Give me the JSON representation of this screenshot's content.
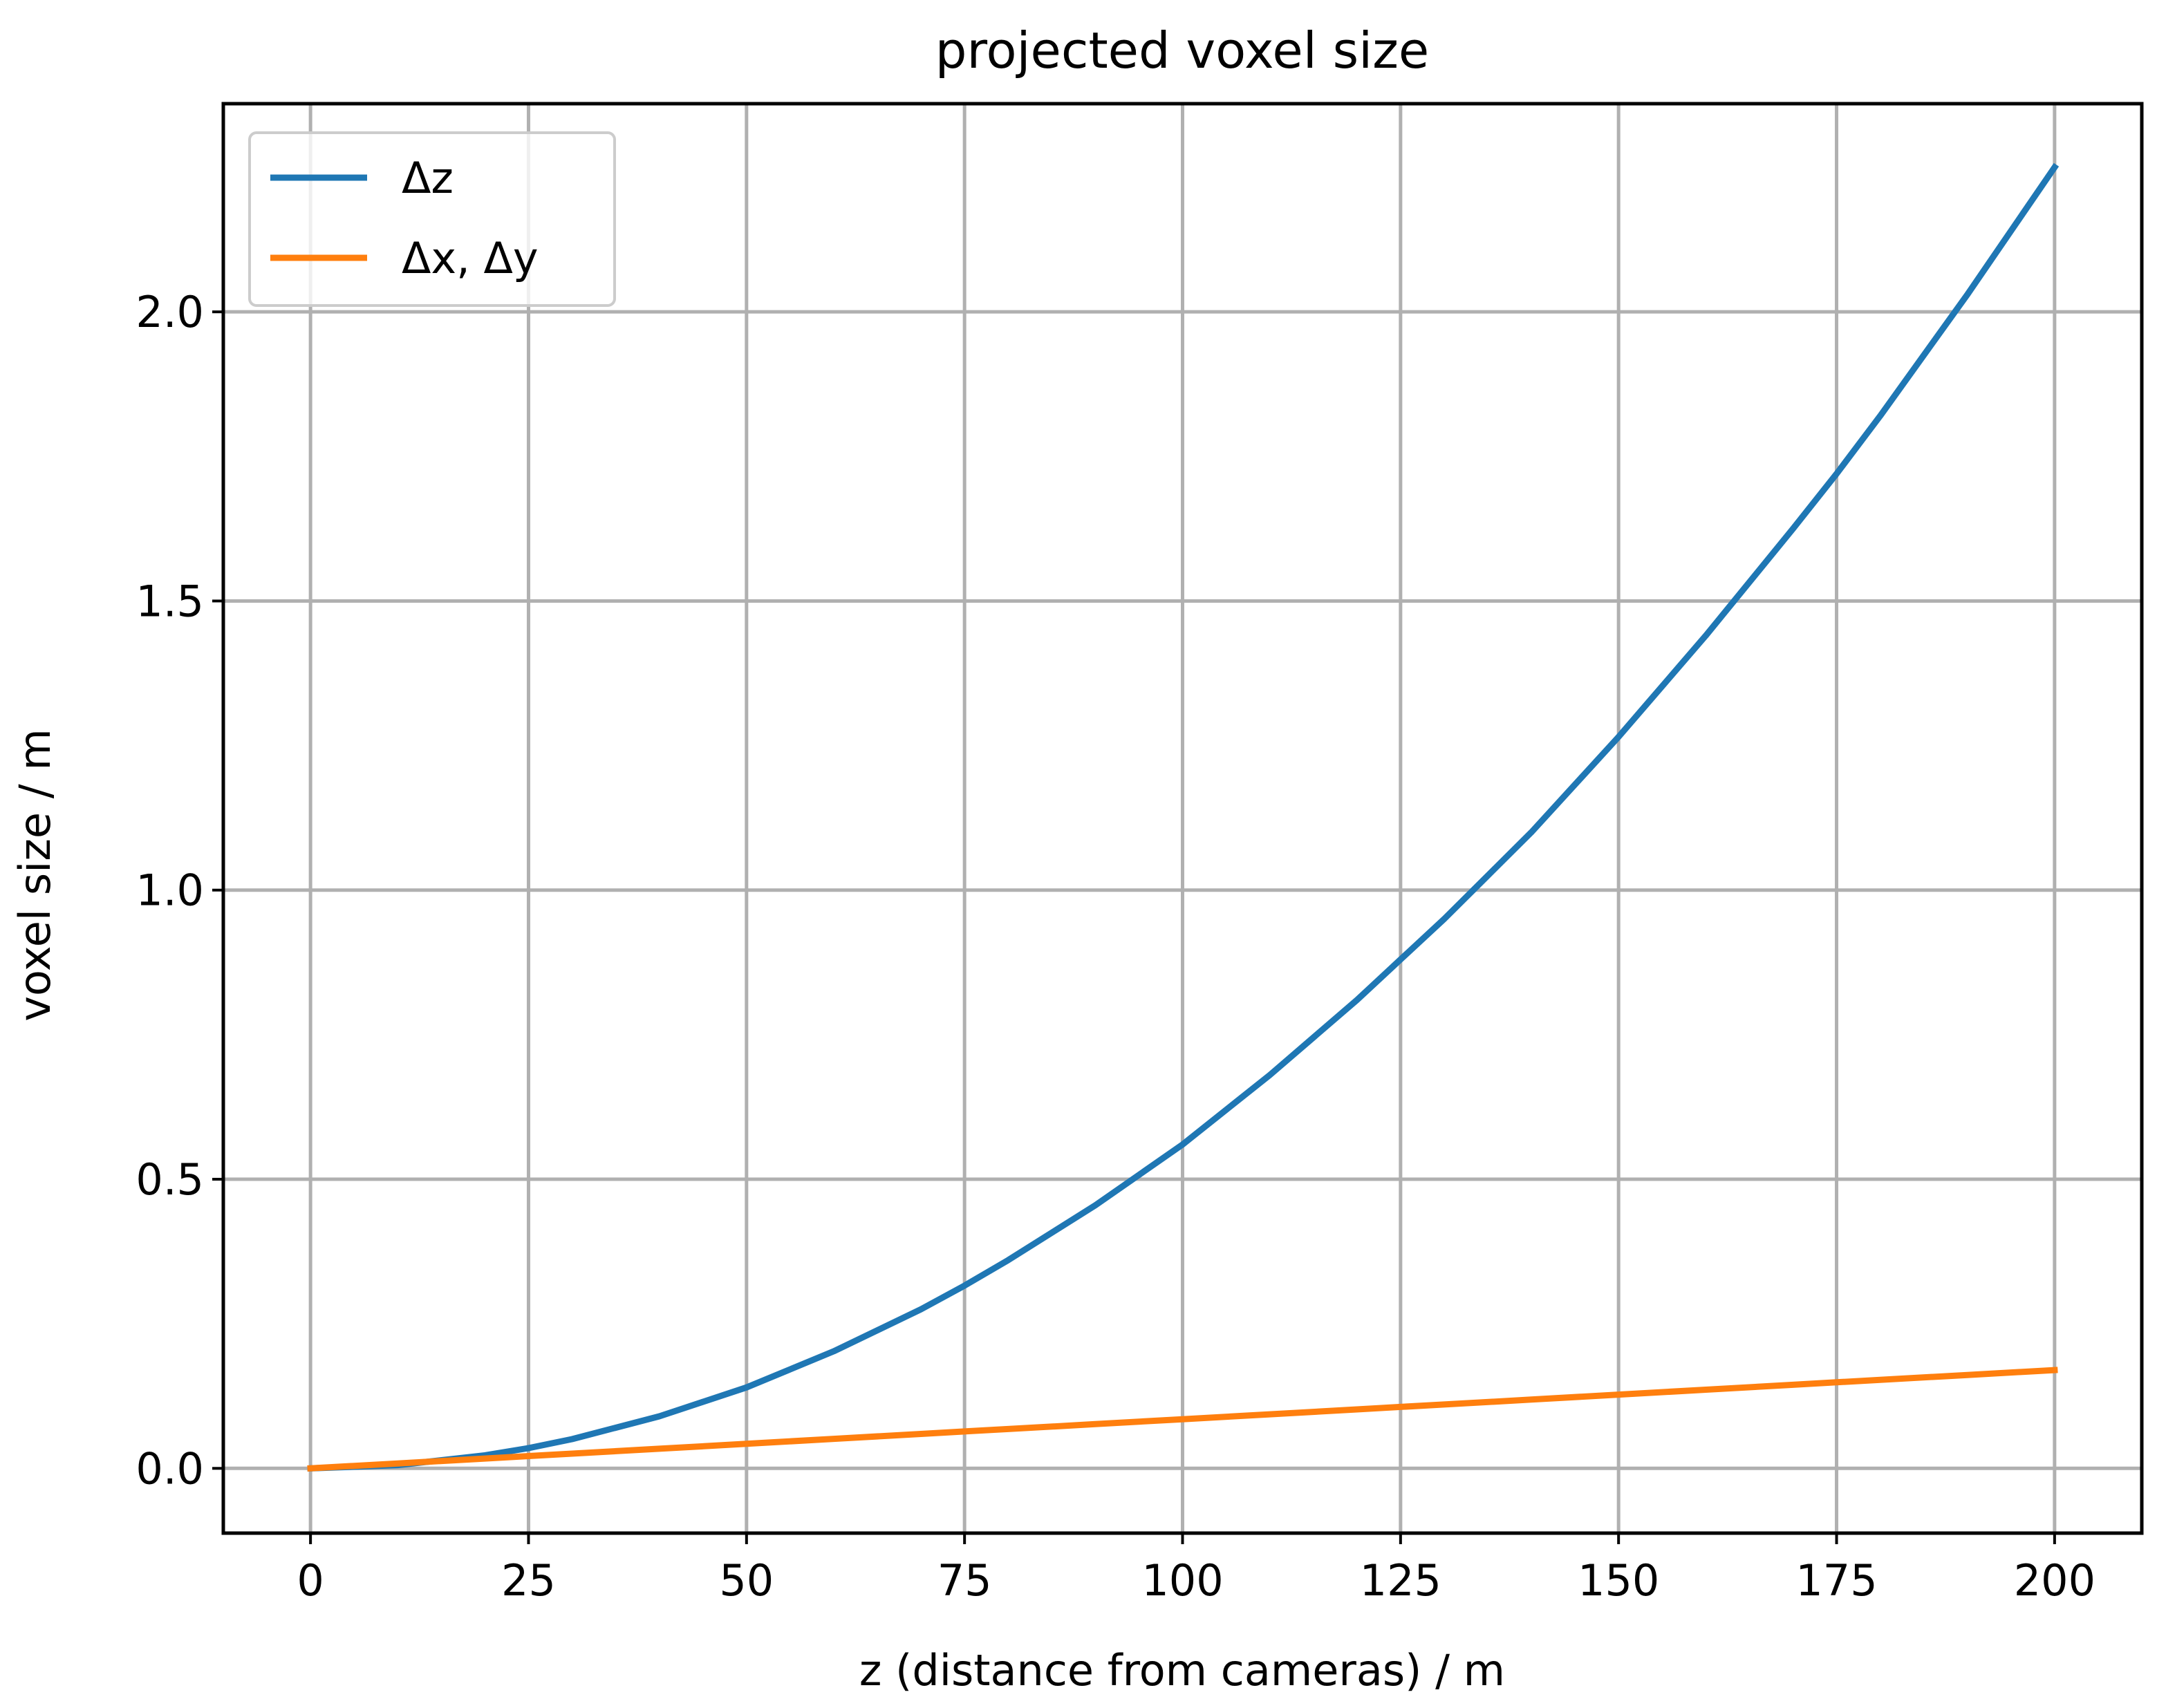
{
  "chart_data": {
    "type": "line",
    "title": "projected voxel size",
    "xlabel": "z (distance from cameras) / m",
    "ylabel": "voxel size / m",
    "xlim": [
      -10,
      210
    ],
    "ylim": [
      -0.112,
      2.36
    ],
    "xticks": [
      0,
      25,
      50,
      75,
      100,
      125,
      150,
      175,
      200
    ],
    "xtick_labels": [
      "0",
      "25",
      "50",
      "75",
      "100",
      "125",
      "150",
      "175",
      "200"
    ],
    "yticks": [
      0.0,
      0.5,
      1.0,
      1.5,
      2.0
    ],
    "ytick_labels": [
      "0.0",
      "0.5",
      "1.0",
      "1.5",
      "2.0"
    ],
    "grid": true,
    "legend_position": "top-left",
    "x": [
      0,
      10,
      20,
      25,
      30,
      40,
      50,
      60,
      70,
      75,
      80,
      90,
      100,
      110,
      120,
      125,
      130,
      140,
      150,
      160,
      170,
      175,
      180,
      190,
      200
    ],
    "series": [
      {
        "name": "Δz",
        "color": "#1f77b4",
        "values": [
          0.0,
          0.0056,
          0.0225,
          0.035,
          0.0506,
          0.09,
          0.14,
          0.2025,
          0.275,
          0.316,
          0.36,
          0.455,
          0.56,
          0.68,
          0.81,
          0.88,
          0.95,
          1.1,
          1.265,
          1.44,
          1.625,
          1.72,
          1.82,
          2.03,
          2.25
        ]
      },
      {
        "name": "Δx, Δy",
        "color": "#ff7f0e",
        "values": [
          0.0,
          0.0085,
          0.017,
          0.0213,
          0.0255,
          0.034,
          0.0425,
          0.051,
          0.0595,
          0.0638,
          0.068,
          0.0765,
          0.085,
          0.0935,
          0.102,
          0.1063,
          0.1105,
          0.119,
          0.1275,
          0.136,
          0.1445,
          0.1488,
          0.153,
          0.1615,
          0.17
        ]
      }
    ]
  }
}
